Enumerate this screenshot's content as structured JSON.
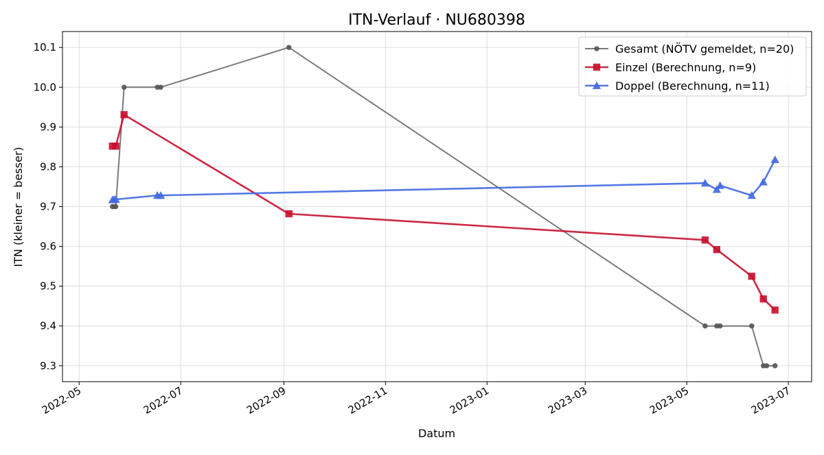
{
  "chart_data": {
    "type": "line",
    "title": "ITN-Verlauf · NU680398",
    "xlabel": "Datum",
    "ylabel": "ITN  (kleiner = besser)",
    "x_ticks": [
      "2022-05",
      "2022-07",
      "2022-09",
      "2022-11",
      "2023-01",
      "2023-03",
      "2023-05",
      "2023-07"
    ],
    "y_ticks": [
      "9.3",
      "9.4",
      "9.5",
      "9.6",
      "9.7",
      "9.8",
      "9.9",
      "10.0",
      "10.1"
    ],
    "xlim": [
      "2022-04-21",
      "2023-07-15"
    ],
    "ylim": [
      9.26,
      10.14
    ],
    "grid": true,
    "legend_position": "top-right",
    "series": [
      {
        "name": "Gesamt (NÖTV gemeldet, n=20)",
        "color": "#555555",
        "marker": "circle",
        "points": [
          {
            "x": "2022-05-21",
            "y": 9.7
          },
          {
            "x": "2022-05-22",
            "y": 9.7
          },
          {
            "x": "2022-05-23",
            "y": 9.7
          },
          {
            "x": "2022-05-28",
            "y": 10.0
          },
          {
            "x": "2022-06-17",
            "y": 10.0
          },
          {
            "x": "2022-06-19",
            "y": 10.0
          },
          {
            "x": "2022-09-04",
            "y": 10.1
          },
          {
            "x": "2023-05-12",
            "y": 9.4
          },
          {
            "x": "2023-05-19",
            "y": 9.4
          },
          {
            "x": "2023-05-21",
            "y": 9.4
          },
          {
            "x": "2023-06-09",
            "y": 9.4
          },
          {
            "x": "2023-06-16",
            "y": 9.3
          },
          {
            "x": "2023-06-18",
            "y": 9.3
          },
          {
            "x": "2023-06-23",
            "y": 9.3
          }
        ]
      },
      {
        "name": "Einzel (Berechnung, n=9)",
        "color": "#c8102e",
        "marker": "square",
        "points": [
          {
            "x": "2022-05-21",
            "y": 9.852
          },
          {
            "x": "2022-05-23",
            "y": 9.852
          },
          {
            "x": "2022-05-28",
            "y": 9.931
          },
          {
            "x": "2022-09-04",
            "y": 9.682
          },
          {
            "x": "2023-05-12",
            "y": 9.616
          },
          {
            "x": "2023-05-19",
            "y": 9.592
          },
          {
            "x": "2023-06-09",
            "y": 9.525
          },
          {
            "x": "2023-06-16",
            "y": 9.468
          },
          {
            "x": "2023-06-23",
            "y": 9.44
          }
        ]
      },
      {
        "name": "Doppel (Berechnung, n=11)",
        "color": "#4169e1",
        "marker": "triangle",
        "points": [
          {
            "x": "2022-05-21",
            "y": 9.717
          },
          {
            "x": "2022-05-22",
            "y": 9.718
          },
          {
            "x": "2022-05-23",
            "y": 9.718
          },
          {
            "x": "2022-06-17",
            "y": 9.728
          },
          {
            "x": "2022-06-19",
            "y": 9.728
          },
          {
            "x": "2023-05-12",
            "y": 9.759
          },
          {
            "x": "2023-05-19",
            "y": 9.743
          },
          {
            "x": "2023-05-21",
            "y": 9.753
          },
          {
            "x": "2023-06-09",
            "y": 9.728
          },
          {
            "x": "2023-06-16",
            "y": 9.762
          },
          {
            "x": "2023-06-23",
            "y": 9.818
          }
        ]
      }
    ]
  }
}
